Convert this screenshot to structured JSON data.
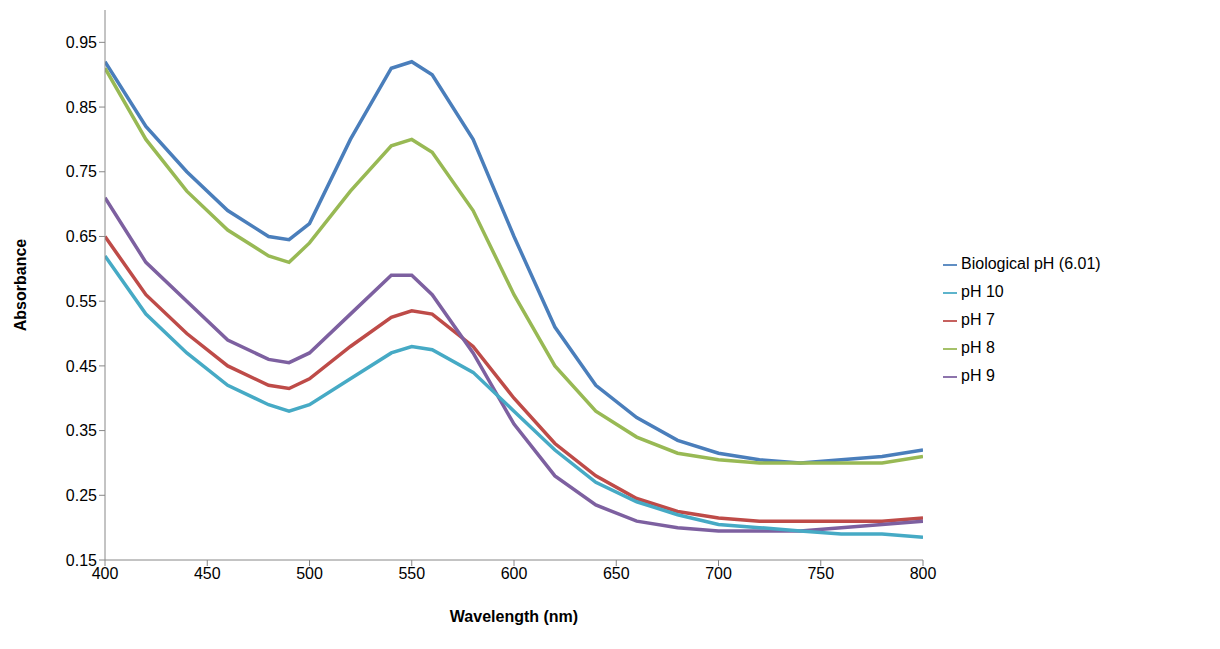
{
  "chart_data": {
    "type": "line",
    "x_label": "Wavelength (nm)",
    "y_label": "Absorbance",
    "x": [
      400,
      420,
      440,
      460,
      480,
      490,
      500,
      520,
      540,
      550,
      560,
      580,
      600,
      620,
      640,
      660,
      680,
      700,
      720,
      740,
      760,
      780,
      800
    ],
    "series": [
      {
        "name": "Biological pH (6.01)",
        "color": "#4a7ebb",
        "values": [
          0.92,
          0.82,
          0.75,
          0.69,
          0.65,
          0.645,
          0.67,
          0.8,
          0.91,
          0.92,
          0.9,
          0.8,
          0.65,
          0.51,
          0.42,
          0.37,
          0.335,
          0.315,
          0.305,
          0.3,
          0.305,
          0.31,
          0.32
        ]
      },
      {
        "name": "pH 7",
        "color": "#be4b48",
        "values": [
          0.65,
          0.56,
          0.5,
          0.45,
          0.42,
          0.415,
          0.43,
          0.48,
          0.525,
          0.535,
          0.53,
          0.48,
          0.4,
          0.33,
          0.28,
          0.245,
          0.225,
          0.215,
          0.21,
          0.21,
          0.21,
          0.21,
          0.215
        ]
      },
      {
        "name": "pH 8",
        "color": "#98b954",
        "values": [
          0.91,
          0.8,
          0.72,
          0.66,
          0.62,
          0.61,
          0.64,
          0.72,
          0.79,
          0.8,
          0.78,
          0.69,
          0.56,
          0.45,
          0.38,
          0.34,
          0.315,
          0.305,
          0.3,
          0.3,
          0.3,
          0.3,
          0.31
        ]
      },
      {
        "name": "pH 9",
        "color": "#7d60a0",
        "values": [
          0.71,
          0.61,
          0.55,
          0.49,
          0.46,
          0.455,
          0.47,
          0.53,
          0.59,
          0.59,
          0.56,
          0.47,
          0.36,
          0.28,
          0.235,
          0.21,
          0.2,
          0.195,
          0.195,
          0.195,
          0.2,
          0.205,
          0.21
        ]
      },
      {
        "name": "pH 10",
        "color": "#46aac5",
        "values": [
          0.62,
          0.53,
          0.47,
          0.42,
          0.39,
          0.38,
          0.39,
          0.43,
          0.47,
          0.48,
          0.475,
          0.44,
          0.38,
          0.32,
          0.27,
          0.24,
          0.22,
          0.205,
          0.2,
          0.195,
          0.19,
          0.19,
          0.185
        ]
      }
    ],
    "xlim": [
      400,
      800
    ],
    "xticks": [
      400,
      450,
      500,
      550,
      600,
      650,
      700,
      750,
      800
    ],
    "ylim": [
      0.15,
      1.0
    ],
    "yticks": [
      0.15,
      0.25,
      0.35,
      0.45,
      0.55,
      0.65,
      0.75,
      0.85,
      0.95
    ],
    "grid": false,
    "legend": "right"
  }
}
